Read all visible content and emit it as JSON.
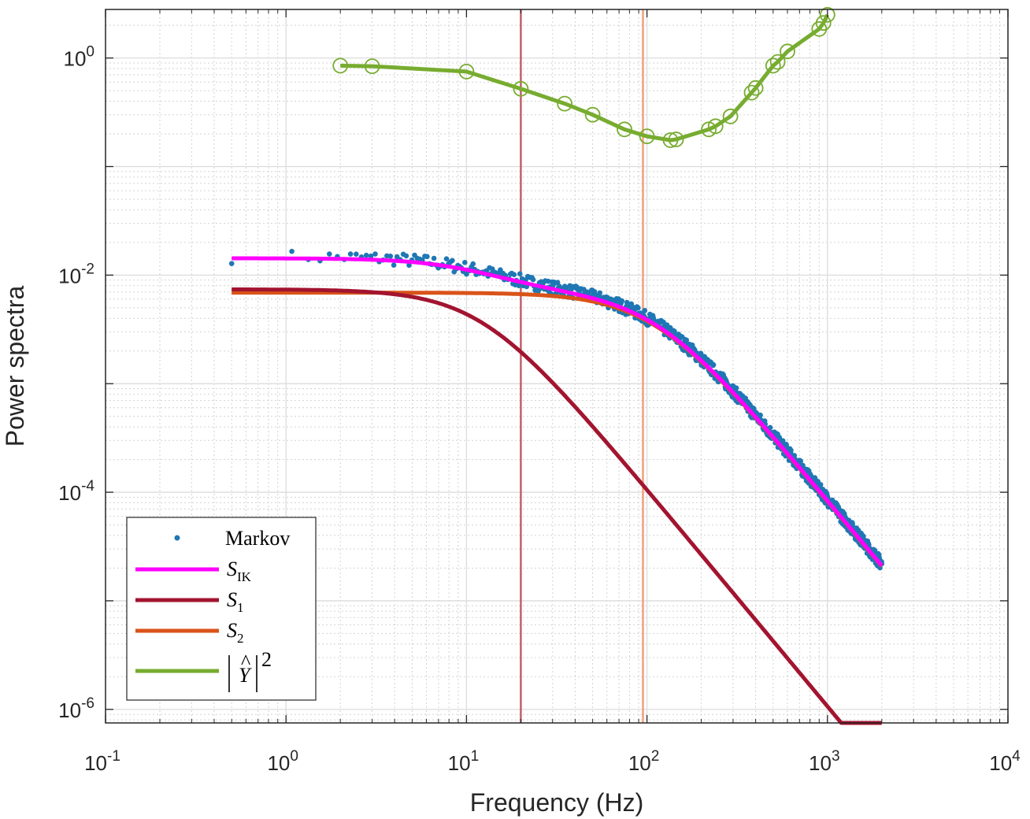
{
  "chart_data": {
    "type": "line",
    "scale": {
      "x": "log",
      "y": "log"
    },
    "xlabel": "Frequency (Hz)",
    "ylabel": "Power spectra",
    "xlim": [
      0.1,
      10000
    ],
    "ylim": [
      7.5e-07,
      2.8
    ],
    "grid": true,
    "minor_grid": true,
    "legend_position": "bottom-left",
    "x_ticks": [
      {
        "value": 0.1,
        "base": "10",
        "exp": "-1"
      },
      {
        "value": 1,
        "base": "10",
        "exp": "0"
      },
      {
        "value": 10,
        "base": "10",
        "exp": "1"
      },
      {
        "value": 100,
        "base": "10",
        "exp": "2"
      },
      {
        "value": 1000,
        "base": "10",
        "exp": "3"
      },
      {
        "value": 10000,
        "base": "10",
        "exp": "4"
      }
    ],
    "y_ticks": [
      {
        "value": 1e-06,
        "base": "10",
        "exp": "-6"
      },
      {
        "value": 0.0001,
        "base": "10",
        "exp": "-4"
      },
      {
        "value": 0.01,
        "base": "10",
        "exp": "-2"
      },
      {
        "value": 1,
        "base": "10",
        "exp": "0"
      }
    ],
    "vertical_lines": [
      {
        "name": "fc1-line",
        "x": 20,
        "color": "#c0606a"
      },
      {
        "name": "fc2-line",
        "x": 95,
        "color": "#f2a07a"
      }
    ],
    "series": [
      {
        "name": "Markov",
        "kind": "scatter",
        "color": "#1f77b4",
        "model": {
          "A": 0.0133,
          "f0": 12,
          "B": 0.0069,
          "f1": 110,
          "start": 0.5,
          "end": 2000
        }
      },
      {
        "name": "S_IK",
        "legend_main": "S",
        "legend_sub": "IK",
        "kind": "line",
        "color": "#ff00ff",
        "model": {
          "type": "sum",
          "A": 0.0074,
          "f0": 12,
          "B": 0.0069,
          "f1": 110,
          "start": 0.5,
          "end": 2000
        }
      },
      {
        "name": "S_1",
        "legend_main": "S",
        "legend_sub": "1",
        "kind": "line",
        "color": "#a2142f",
        "model": {
          "type": "lorentz",
          "A": 0.0074,
          "f0": 12,
          "start": 0.5,
          "end": 2000
        }
      },
      {
        "name": "S_2",
        "legend_main": "S",
        "legend_sub": "2",
        "kind": "line",
        "color": "#d95319",
        "model": {
          "type": "lorentz",
          "A": 0.0069,
          "f0": 110,
          "start": 0.5,
          "end": 2000
        }
      },
      {
        "name": "|Y_hat|^2",
        "legend_main": "Y",
        "legend_sup": "2",
        "kind": "line-markers",
        "color": "#77ac30",
        "x": [
          2,
          3,
          10,
          20,
          35,
          50,
          75,
          100,
          135,
          145,
          220,
          240,
          290,
          380,
          400,
          500,
          530,
          600,
          900,
          950,
          1000
        ],
        "y": [
          0.85,
          0.84,
          0.75,
          0.52,
          0.38,
          0.3,
          0.22,
          0.19,
          0.175,
          0.178,
          0.22,
          0.235,
          0.29,
          0.48,
          0.53,
          0.85,
          0.92,
          1.15,
          1.85,
          2.1,
          2.5
        ]
      }
    ]
  }
}
